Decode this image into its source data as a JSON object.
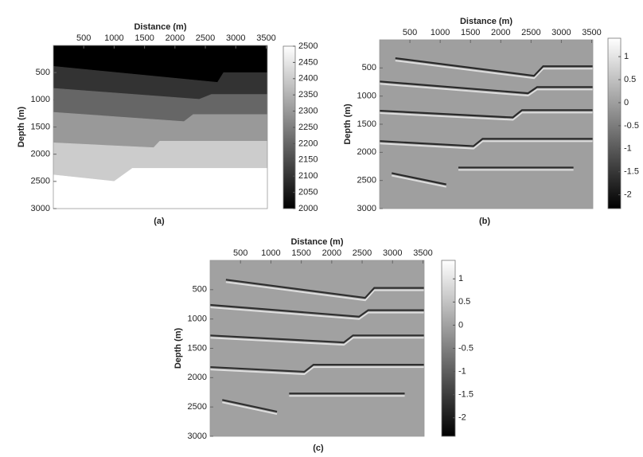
{
  "chart_data": [
    {
      "type": "heatmap",
      "caption": "(a)",
      "xlabel": "Distance (m)",
      "ylabel": "Depth (m)",
      "xlim": [
        0,
        3520
      ],
      "ylim": [
        0,
        3000
      ],
      "xticks": [
        500,
        1000,
        1500,
        2000,
        2500,
        3000,
        3500
      ],
      "yticks": [
        500,
        1000,
        1500,
        2000,
        2500,
        3000
      ],
      "clim": [
        2000,
        2500
      ],
      "cticks": [
        2000,
        2050,
        2100,
        2150,
        2200,
        2250,
        2300,
        2350,
        2400,
        2450,
        2500
      ],
      "layer_values": [
        2000,
        2100,
        2200,
        2300,
        2400,
        2500
      ],
      "boundaries": [
        {
          "x": [
            0,
            2700,
            2800,
            3520
          ],
          "depth": [
            385,
            680,
            500,
            500
          ]
        },
        {
          "x": [
            0,
            2400,
            2600,
            3520
          ],
          "depth": [
            790,
            990,
            900,
            900
          ]
        },
        {
          "x": [
            0,
            2150,
            2300,
            3520
          ],
          "depth": [
            1230,
            1400,
            1270,
            1270
          ]
        },
        {
          "x": [
            0,
            1650,
            1750,
            3520
          ],
          "depth": [
            1790,
            1880,
            1760,
            1760
          ]
        },
        {
          "x": [
            0,
            1000,
            1300,
            3520
          ],
          "depth": [
            2380,
            2500,
            2260,
            2260
          ]
        }
      ]
    },
    {
      "type": "seismic",
      "caption": "(b)",
      "xlabel": "Distance (m)",
      "ylabel": "Depth (m)",
      "xlim": [
        0,
        3520
      ],
      "ylim": [
        0,
        3000
      ],
      "xticks": [
        500,
        1000,
        1500,
        2000,
        2500,
        3000,
        3500
      ],
      "yticks": [
        500,
        1000,
        1500,
        2000,
        2500,
        3000
      ],
      "clim": [
        -2.3,
        1.4
      ],
      "cticks": [
        -2,
        -1.5,
        -1,
        -0.5,
        0,
        0.5,
        1
      ],
      "background": 0,
      "trough": -2,
      "peak": 1,
      "reflectors": [
        {
          "x": [
            260,
            2550,
            2700,
            3520
          ],
          "depth": [
            327,
            640,
            470,
            470
          ]
        },
        {
          "x": [
            0,
            2450,
            2600,
            3520
          ],
          "depth": [
            740,
            950,
            840,
            840
          ]
        },
        {
          "x": [
            0,
            2200,
            2350,
            3520
          ],
          "depth": [
            1260,
            1380,
            1250,
            1250
          ]
        },
        {
          "x": [
            0,
            1550,
            1700,
            3520
          ],
          "depth": [
            1800,
            1890,
            1760,
            1760
          ]
        },
        {
          "x": [
            200,
            1100,
            null,
            1300,
            3200
          ],
          "depth": [
            2370,
            2570,
            null,
            2270,
            2270
          ]
        }
      ]
    },
    {
      "type": "seismic",
      "caption": "(c)",
      "xlabel": "Distance (m)",
      "ylabel": "Depth (m)",
      "xlim": [
        0,
        3520
      ],
      "ylim": [
        0,
        3000
      ],
      "xticks": [
        500,
        1000,
        1500,
        2000,
        2500,
        3000,
        3500
      ],
      "yticks": [
        500,
        1000,
        1500,
        2000,
        2500,
        3000
      ],
      "clim": [
        -2.4,
        1.4
      ],
      "cticks": [
        -2,
        -1.5,
        -1,
        -0.5,
        0,
        0.5,
        1
      ],
      "background": 0,
      "trough": -2,
      "peak": 1,
      "reflectors": [
        {
          "x": [
            260,
            2550,
            2700,
            3520
          ],
          "depth": [
            330,
            640,
            470,
            470
          ]
        },
        {
          "x": [
            0,
            2450,
            2600,
            3520
          ],
          "depth": [
            760,
            960,
            850,
            850
          ]
        },
        {
          "x": [
            0,
            2200,
            2350,
            3520
          ],
          "depth": [
            1280,
            1400,
            1280,
            1280
          ]
        },
        {
          "x": [
            0,
            1550,
            1700,
            3520
          ],
          "depth": [
            1820,
            1900,
            1780,
            1780
          ]
        },
        {
          "x": [
            200,
            1100,
            null,
            1300,
            3200
          ],
          "depth": [
            2380,
            2580,
            null,
            2270,
            2270
          ]
        }
      ]
    }
  ]
}
